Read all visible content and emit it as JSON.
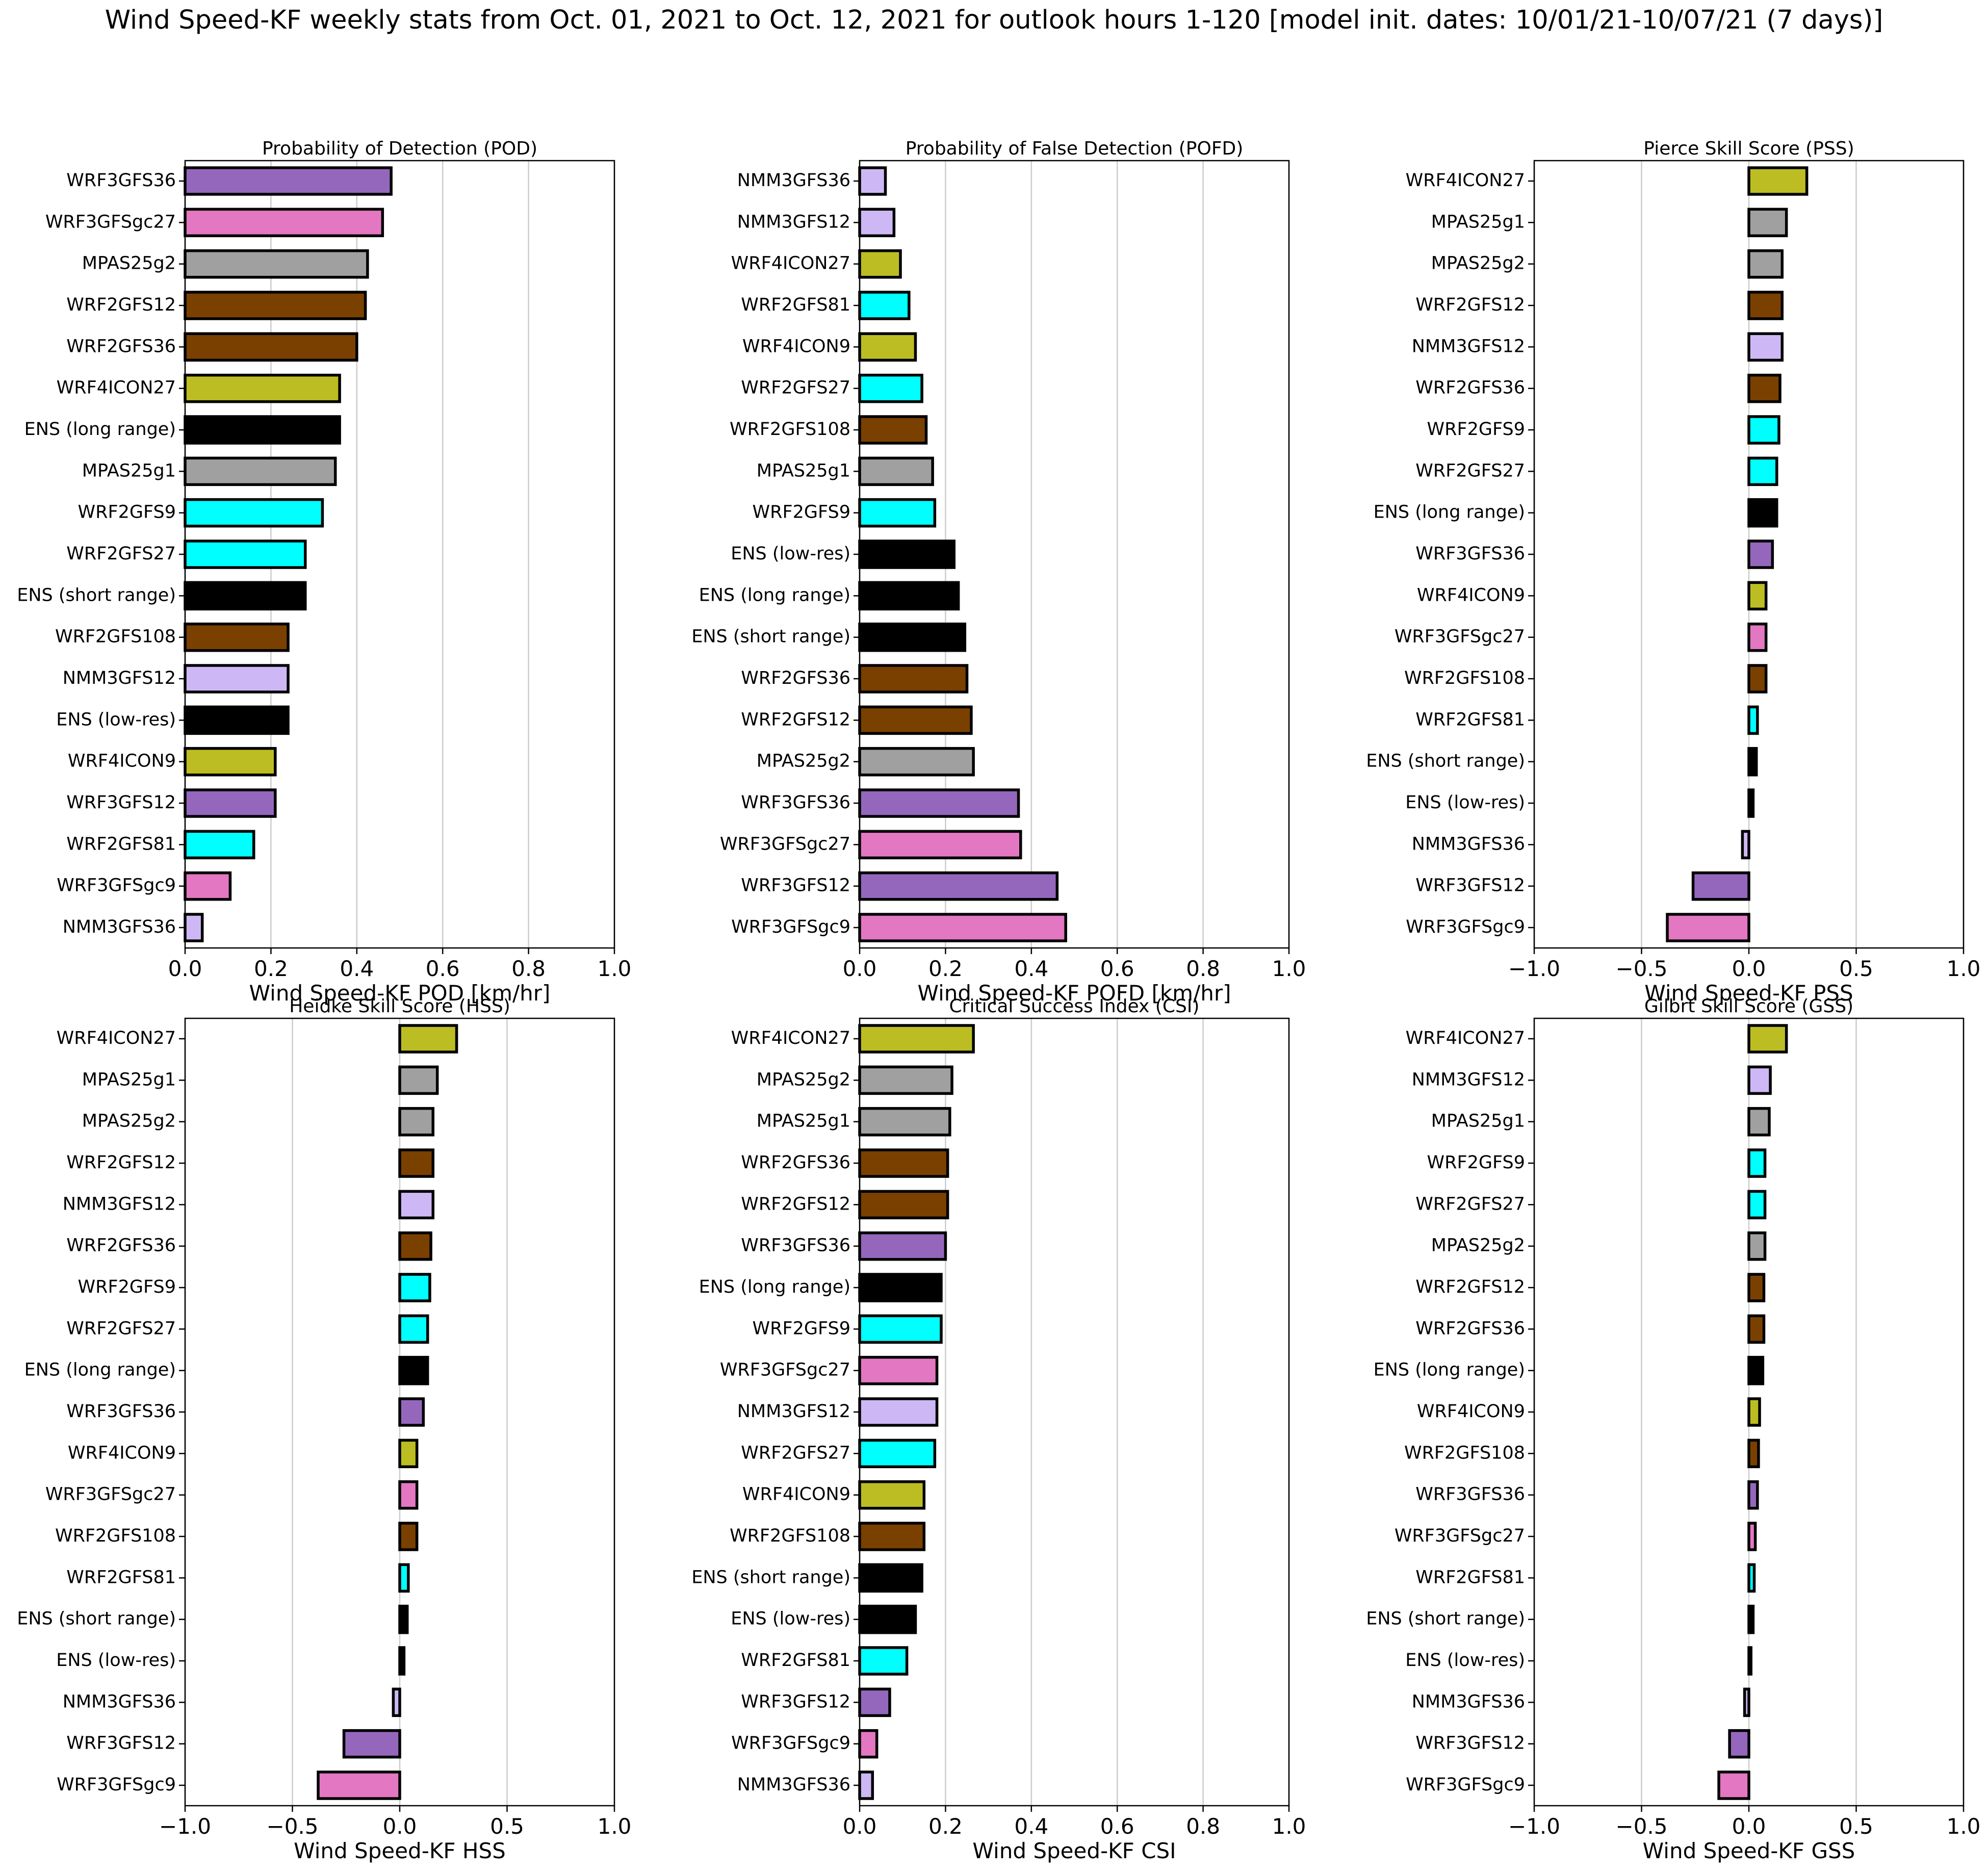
{
  "title": "Wind Speed-KF  weekly stats from Oct. 01, 2021 to Oct. 12, 2021 for outlook hours 1-120  [model init. dates: 10/01/21-10/07/21 (7 days)]",
  "colors": {
    "purple": "#9467bd",
    "pink": "#e377c2",
    "gray": "#a0a0a0",
    "brown": "#7a4000",
    "olive": "#bcbd22",
    "black": "#000000",
    "cyan": "#00ffff",
    "lavender": "#cdb8f5",
    "grid": "#cccccc"
  },
  "chart_data": [
    {
      "type": "bar",
      "orientation": "horizontal",
      "title": "Probability of Detection (POD)",
      "xlabel": "Wind Speed-KF  POD [km/hr]",
      "xlim": [
        0.0,
        1.0
      ],
      "xticks": [
        "0.0",
        "0.2",
        "0.4",
        "0.6",
        "0.8",
        "1.0"
      ],
      "grid": "vertical",
      "categories": [
        "WRF3GFS36",
        "WRF3GFSgc27",
        "MPAS25g2",
        "WRF2GFS12",
        "WRF2GFS36",
        "WRF4ICON27",
        "ENS (long range)",
        "MPAS25g1",
        "WRF2GFS9",
        "WRF2GFS27",
        "ENS (short range)",
        "WRF2GFS108",
        "NMM3GFS12",
        "ENS (low-res)",
        "WRF4ICON9",
        "WRF3GFS12",
        "WRF2GFS81",
        "WRF3GFSgc9",
        "NMM3GFS36"
      ],
      "values": [
        0.48,
        0.46,
        0.425,
        0.42,
        0.4,
        0.36,
        0.36,
        0.35,
        0.32,
        0.28,
        0.28,
        0.24,
        0.24,
        0.24,
        0.21,
        0.21,
        0.16,
        0.105,
        0.04
      ],
      "colors": [
        "purple",
        "pink",
        "gray",
        "brown",
        "brown",
        "olive",
        "black",
        "gray",
        "cyan",
        "cyan",
        "black",
        "brown",
        "lavender",
        "black",
        "olive",
        "purple",
        "cyan",
        "pink",
        "lavender"
      ]
    },
    {
      "type": "bar",
      "orientation": "horizontal",
      "title": "Probability of False Detection (POFD)",
      "xlabel": "Wind Speed-KF  POFD [km/hr]",
      "xlim": [
        0.0,
        1.0
      ],
      "xticks": [
        "0.0",
        "0.2",
        "0.4",
        "0.6",
        "0.8",
        "1.0"
      ],
      "grid": "vertical",
      "categories": [
        "NMM3GFS36",
        "NMM3GFS12",
        "WRF4ICON27",
        "WRF2GFS81",
        "WRF4ICON9",
        "WRF2GFS27",
        "WRF2GFS108",
        "MPAS25g1",
        "WRF2GFS9",
        "ENS (low-res)",
        "ENS (long range)",
        "ENS (short range)",
        "WRF2GFS36",
        "WRF2GFS12",
        "MPAS25g2",
        "WRF3GFS36",
        "WRF3GFSgc27",
        "WRF3GFS12",
        "WRF3GFSgc9"
      ],
      "values": [
        0.06,
        0.08,
        0.095,
        0.115,
        0.13,
        0.145,
        0.155,
        0.17,
        0.175,
        0.22,
        0.23,
        0.245,
        0.25,
        0.26,
        0.265,
        0.37,
        0.375,
        0.46,
        0.48
      ],
      "colors": [
        "lavender",
        "lavender",
        "olive",
        "cyan",
        "olive",
        "cyan",
        "brown",
        "gray",
        "cyan",
        "black",
        "black",
        "black",
        "brown",
        "brown",
        "gray",
        "purple",
        "pink",
        "purple",
        "pink"
      ]
    },
    {
      "type": "bar",
      "orientation": "horizontal",
      "title": "Pierce Skill Score (PSS)",
      "xlabel": "Wind Speed-KF  PSS",
      "xlim": [
        -1.0,
        1.0
      ],
      "xticks": [
        "−1.0",
        "−0.5",
        "0.0",
        "0.5",
        "1.0"
      ],
      "grid": "vertical",
      "categories": [
        "WRF4ICON27",
        "MPAS25g1",
        "MPAS25g2",
        "WRF2GFS12",
        "NMM3GFS12",
        "WRF2GFS36",
        "WRF2GFS9",
        "WRF2GFS27",
        "ENS (long range)",
        "WRF3GFS36",
        "WRF4ICON9",
        "WRF3GFSgc27",
        "WRF2GFS108",
        "WRF2GFS81",
        "ENS (short range)",
        "ENS (low-res)",
        "NMM3GFS36",
        "WRF3GFS12",
        "WRF3GFSgc9"
      ],
      "values": [
        0.27,
        0.175,
        0.155,
        0.155,
        0.155,
        0.145,
        0.14,
        0.13,
        0.13,
        0.11,
        0.08,
        0.08,
        0.08,
        0.04,
        0.035,
        0.02,
        -0.03,
        -0.26,
        -0.38
      ],
      "colors": [
        "olive",
        "gray",
        "gray",
        "brown",
        "lavender",
        "brown",
        "cyan",
        "cyan",
        "black",
        "purple",
        "olive",
        "pink",
        "brown",
        "cyan",
        "black",
        "black",
        "lavender",
        "purple",
        "pink"
      ]
    },
    {
      "type": "bar",
      "orientation": "horizontal",
      "title": "Heidke Skill Score (HSS)",
      "xlabel": "Wind Speed-KF  HSS",
      "xlim": [
        -1.0,
        1.0
      ],
      "xticks": [
        "−1.0",
        "−0.5",
        "0.0",
        "0.5",
        "1.0"
      ],
      "grid": "vertical",
      "categories": [
        "WRF4ICON27",
        "MPAS25g1",
        "MPAS25g2",
        "WRF2GFS12",
        "NMM3GFS12",
        "WRF2GFS36",
        "WRF2GFS9",
        "WRF2GFS27",
        "ENS (long range)",
        "WRF3GFS36",
        "WRF4ICON9",
        "WRF3GFSgc27",
        "WRF2GFS108",
        "WRF2GFS81",
        "ENS (short range)",
        "ENS (low-res)",
        "NMM3GFS36",
        "WRF3GFS12",
        "WRF3GFSgc9"
      ],
      "values": [
        0.265,
        0.175,
        0.155,
        0.155,
        0.155,
        0.145,
        0.14,
        0.13,
        0.13,
        0.11,
        0.08,
        0.08,
        0.08,
        0.04,
        0.035,
        0.02,
        -0.03,
        -0.26,
        -0.38
      ],
      "colors": [
        "olive",
        "gray",
        "gray",
        "brown",
        "lavender",
        "brown",
        "cyan",
        "cyan",
        "black",
        "purple",
        "olive",
        "pink",
        "brown",
        "cyan",
        "black",
        "black",
        "lavender",
        "purple",
        "pink"
      ]
    },
    {
      "type": "bar",
      "orientation": "horizontal",
      "title": "Critical Success Index (CSI)",
      "xlabel": "Wind Speed-KF  CSI",
      "xlim": [
        0.0,
        1.0
      ],
      "xticks": [
        "0.0",
        "0.2",
        "0.4",
        "0.6",
        "0.8",
        "1.0"
      ],
      "grid": "vertical",
      "categories": [
        "WRF4ICON27",
        "MPAS25g2",
        "MPAS25g1",
        "WRF2GFS36",
        "WRF2GFS12",
        "WRF3GFS36",
        "ENS (long range)",
        "WRF2GFS9",
        "WRF3GFSgc27",
        "NMM3GFS12",
        "WRF2GFS27",
        "WRF4ICON9",
        "WRF2GFS108",
        "ENS (short range)",
        "ENS (low-res)",
        "WRF2GFS81",
        "WRF3GFS12",
        "WRF3GFSgc9",
        "NMM3GFS36"
      ],
      "values": [
        0.265,
        0.215,
        0.21,
        0.205,
        0.205,
        0.2,
        0.19,
        0.19,
        0.18,
        0.18,
        0.175,
        0.15,
        0.15,
        0.145,
        0.13,
        0.11,
        0.07,
        0.04,
        0.03
      ],
      "colors": [
        "olive",
        "gray",
        "gray",
        "brown",
        "brown",
        "purple",
        "black",
        "cyan",
        "pink",
        "lavender",
        "cyan",
        "olive",
        "brown",
        "black",
        "black",
        "cyan",
        "purple",
        "pink",
        "lavender"
      ]
    },
    {
      "type": "bar",
      "orientation": "horizontal",
      "title": "Gilbrt Skill Score (GSS)",
      "xlabel": "Wind Speed-KF  GSS",
      "xlim": [
        -1.0,
        1.0
      ],
      "xticks": [
        "−1.0",
        "−0.5",
        "0.0",
        "0.5",
        "1.0"
      ],
      "grid": "vertical",
      "categories": [
        "WRF4ICON27",
        "NMM3GFS12",
        "MPAS25g1",
        "WRF2GFS9",
        "WRF2GFS27",
        "MPAS25g2",
        "WRF2GFS12",
        "WRF2GFS36",
        "ENS (long range)",
        "WRF4ICON9",
        "WRF2GFS108",
        "WRF3GFS36",
        "WRF3GFSgc27",
        "WRF2GFS81",
        "ENS (short range)",
        "ENS (low-res)",
        "NMM3GFS36",
        "WRF3GFS12",
        "WRF3GFSgc9"
      ],
      "values": [
        0.175,
        0.1,
        0.095,
        0.075,
        0.075,
        0.075,
        0.07,
        0.07,
        0.065,
        0.05,
        0.045,
        0.04,
        0.03,
        0.025,
        0.02,
        0.01,
        -0.02,
        -0.09,
        -0.14
      ],
      "colors": [
        "olive",
        "lavender",
        "gray",
        "cyan",
        "cyan",
        "gray",
        "brown",
        "brown",
        "black",
        "olive",
        "brown",
        "purple",
        "pink",
        "cyan",
        "black",
        "black",
        "lavender",
        "purple",
        "pink"
      ]
    }
  ]
}
